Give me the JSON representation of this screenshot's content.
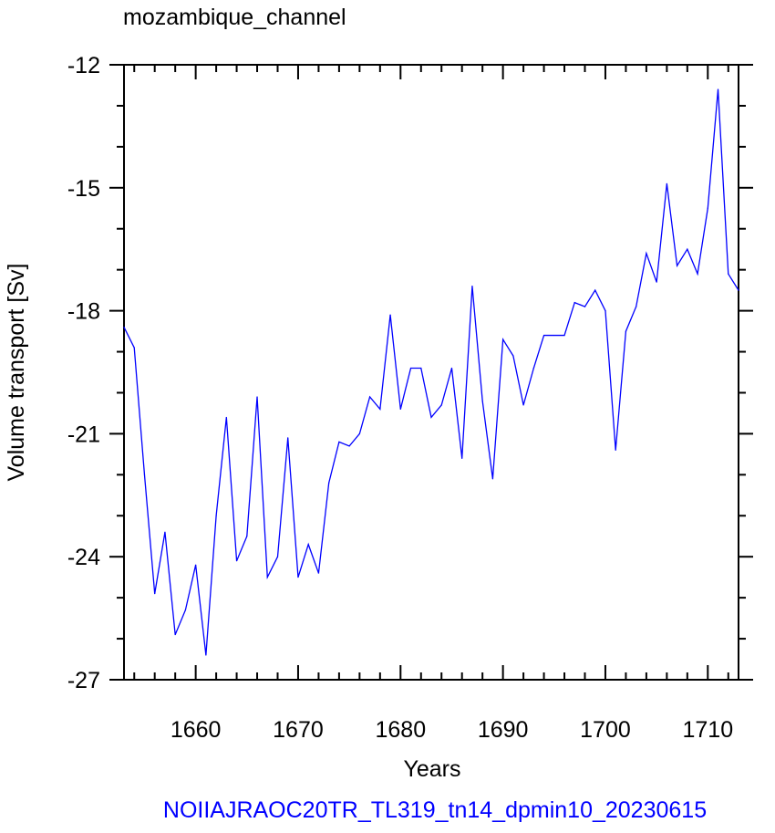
{
  "chart_data": {
    "type": "line",
    "title": "mozambique_channel",
    "xlabel": "Years",
    "ylabel": "Volume transport [Sv]",
    "footer": "NOIIAJRAOC20TR_TL319_tn14_dpmin10_20230615",
    "xlim": [
      1653,
      1713
    ],
    "ylim": [
      -27,
      -12
    ],
    "xticks": [
      1660,
      1670,
      1680,
      1690,
      1700,
      1710
    ],
    "xtick_labels": [
      "1660",
      "1670",
      "1680",
      "1690",
      "1700",
      "1710"
    ],
    "yticks": [
      -27,
      -24,
      -21,
      -18,
      -15,
      -12
    ],
    "ytick_labels": [
      "-27",
      "-24",
      "-21",
      "-18",
      "-15",
      "-12"
    ],
    "line_color": "#0000ff",
    "footer_color": "#0000ff",
    "series": [
      {
        "x": [
          1653,
          1654,
          1655,
          1656,
          1657,
          1658,
          1659,
          1660,
          1661,
          1662,
          1663,
          1664,
          1665,
          1666,
          1667,
          1668,
          1669,
          1670,
          1671,
          1672,
          1673,
          1674,
          1675,
          1676,
          1677,
          1678,
          1679,
          1680,
          1681,
          1682,
          1683,
          1684,
          1685,
          1686,
          1687,
          1688,
          1689,
          1690,
          1691,
          1692,
          1693,
          1694,
          1695,
          1696,
          1697,
          1698,
          1699,
          1700,
          1701,
          1702,
          1703,
          1704,
          1705,
          1706,
          1707,
          1708,
          1709,
          1710,
          1711,
          1712,
          1713
        ],
        "values": [
          -18.4,
          -18.9,
          -22.0,
          -24.9,
          -23.4,
          -25.9,
          -25.3,
          -24.2,
          -26.4,
          -23.0,
          -20.6,
          -24.1,
          -23.5,
          -20.1,
          -24.5,
          -24.0,
          -21.1,
          -24.5,
          -23.7,
          -24.4,
          -22.2,
          -21.2,
          -21.3,
          -21.0,
          -20.1,
          -20.4,
          -18.1,
          -20.4,
          -19.4,
          -19.4,
          -20.6,
          -20.3,
          -19.4,
          -21.6,
          -17.4,
          -20.2,
          -22.1,
          -18.7,
          -19.1,
          -20.3,
          -19.4,
          -18.6,
          -18.6,
          -18.6,
          -17.8,
          -17.9,
          -17.5,
          -18.0,
          -21.4,
          -18.5,
          -17.9,
          -16.6,
          -17.3,
          -14.9,
          -16.9,
          -16.5,
          -17.1,
          -15.5,
          -12.6,
          -17.1,
          -17.5
        ]
      }
    ]
  }
}
